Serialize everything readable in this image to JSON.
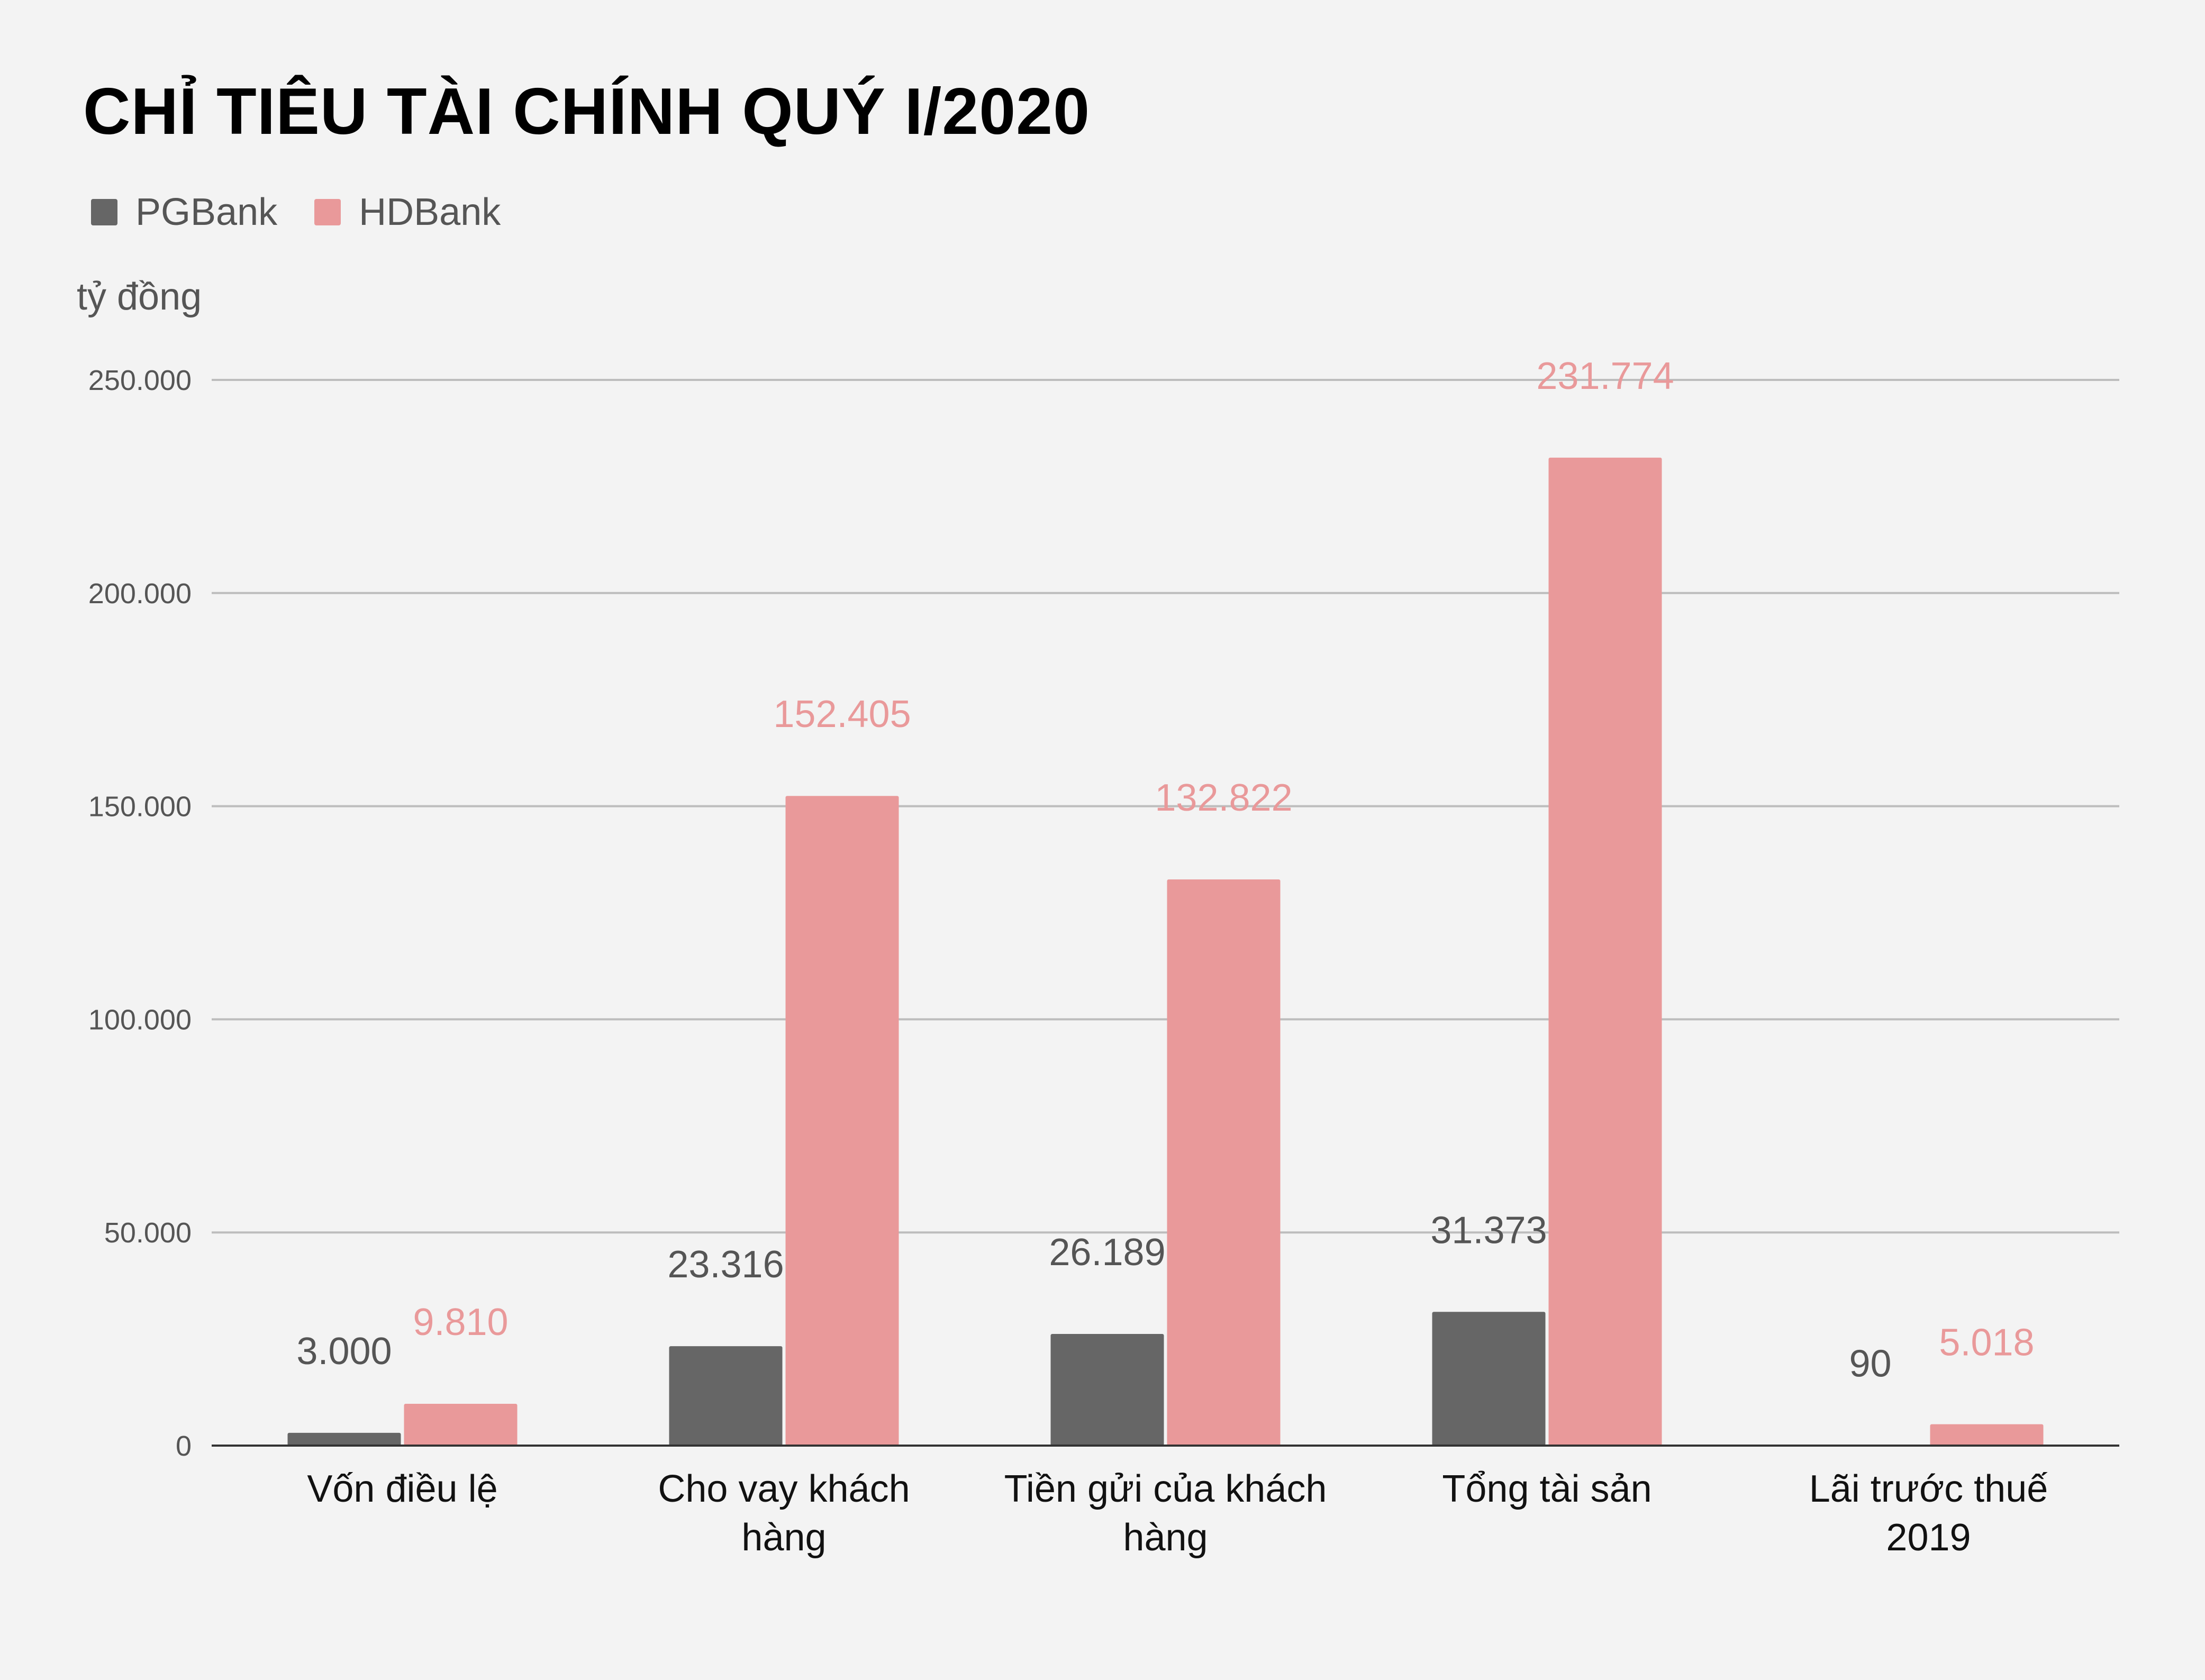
{
  "chart_data": {
    "type": "bar",
    "title": "CHỈ TIÊU TÀI CHÍNH QUÝ I/2020",
    "ylabel": "tỷ đồng",
    "ylim": [
      0,
      250000
    ],
    "yticks": [
      0,
      50000,
      100000,
      150000,
      200000,
      250000
    ],
    "ytick_labels": [
      "0",
      "50.000",
      "100.000",
      "150.000",
      "200.000",
      "250.000"
    ],
    "grid": true,
    "legend_position": "top-left",
    "categories": [
      [
        "Vốn điều lệ"
      ],
      [
        "Cho vay khách",
        "hàng"
      ],
      [
        "Tiền gửi của khách",
        "hàng"
      ],
      [
        "Tổng tài sản"
      ],
      [
        "Lãi trước thuế",
        "2019"
      ]
    ],
    "series": [
      {
        "name": "PGBank",
        "color": "#666666",
        "values": [
          3000,
          23316,
          26189,
          31373,
          90
        ],
        "labels": [
          "3.000",
          "23.316",
          "26.189",
          "31.373",
          "90"
        ]
      },
      {
        "name": "HDBank",
        "color": "#e9999a",
        "values": [
          9810,
          152405,
          132822,
          231774,
          5018
        ],
        "labels": [
          "9.810",
          "152.405",
          "132.822",
          "231.774",
          "5.018"
        ]
      }
    ]
  }
}
